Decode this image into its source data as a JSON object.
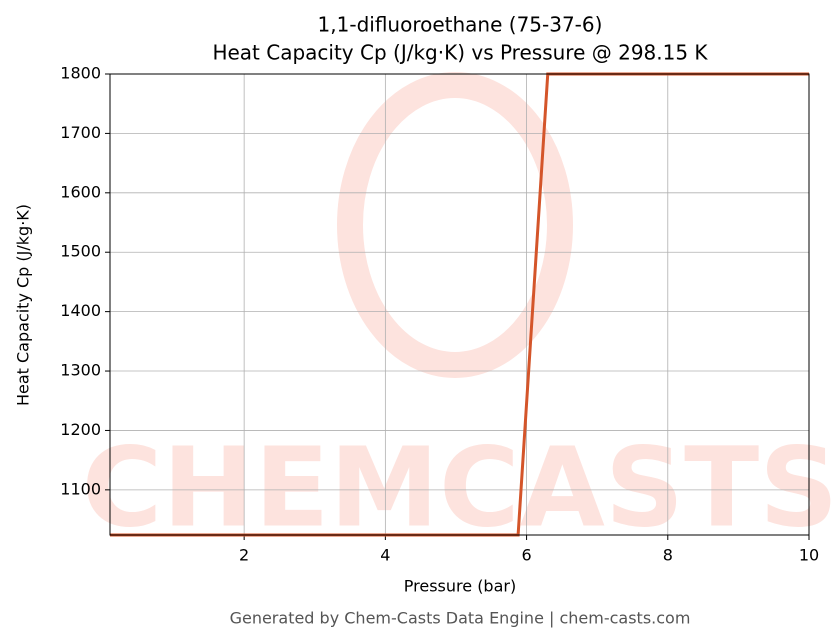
{
  "chart_data": {
    "type": "line",
    "title": "1,1-difluoroethane (75-37-6)",
    "subtitle": "Heat Capacity Cp (J/kg·K) vs Pressure @ 298.15 K",
    "x_label": "Pressure (bar)",
    "y_label": "Heat Capacity Cp (J/kg·K)",
    "watermark": "CHEMCASTS",
    "footer": "Generated by Chem-Casts Data Engine | chem-casts.com",
    "x": [
      0.1,
      5.88,
      6.3,
      10
    ],
    "series": [
      {
        "name": "Cp",
        "color": "#d4552a",
        "values": [
          1024,
          1024,
          1800,
          1800
        ]
      }
    ],
    "xlim": [
      0.1,
      10
    ],
    "xticks": [
      2,
      4,
      6,
      8,
      10
    ],
    "ylim": [
      1024,
      1800
    ],
    "yticks": [
      1100,
      1200,
      1300,
      1400,
      1500,
      1600,
      1700,
      1800
    ],
    "grid": true
  }
}
